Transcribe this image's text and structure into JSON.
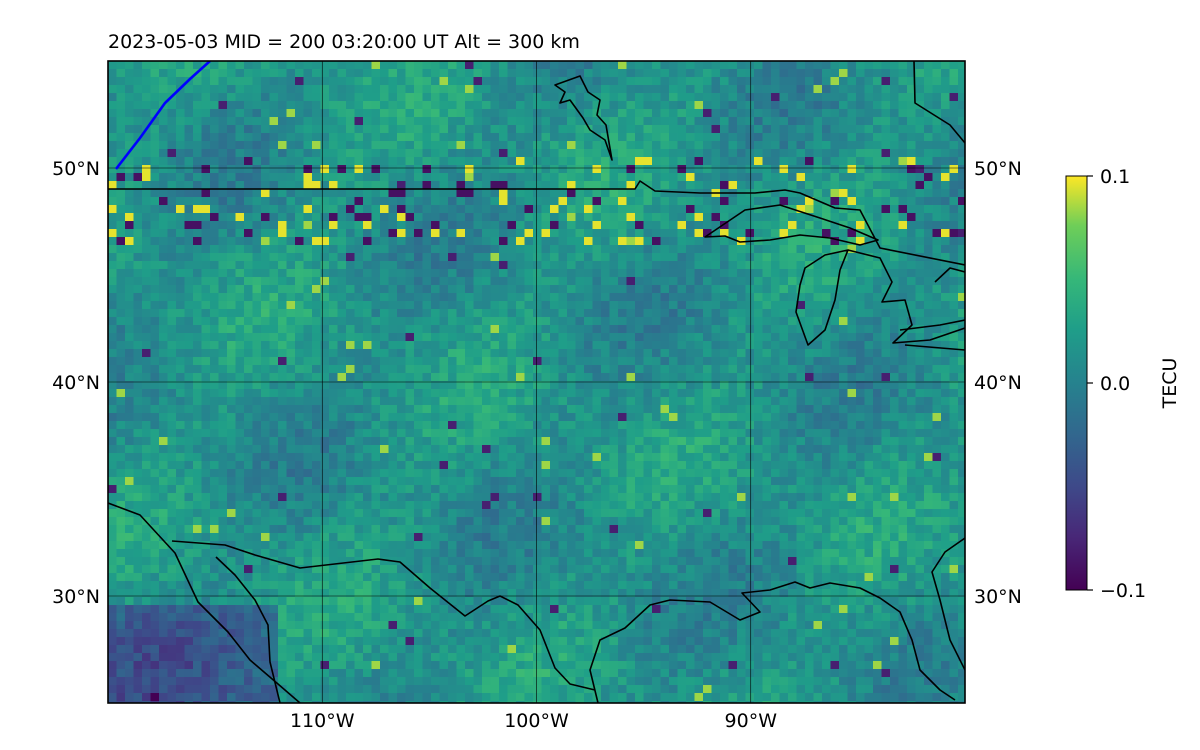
{
  "title": "2023-05-03  MID = 200    03:20:00  UT  Alt = 300 km",
  "map": {
    "projection": "equirectangular",
    "lon_range": [
      -120,
      -80
    ],
    "lat_range": [
      25,
      55
    ],
    "lon_ticks": [
      {
        "value": -110,
        "label": "110°W"
      },
      {
        "value": -100,
        "label": "100°W"
      },
      {
        "value": -90,
        "label": "90°W"
      }
    ],
    "lat_ticks": [
      {
        "value": 50,
        "label": "50°N"
      },
      {
        "value": 40,
        "label": "40°N"
      },
      {
        "value": 30,
        "label": "30°N"
      }
    ],
    "gridlines": true,
    "coastline_color": "#000000",
    "terminator_color": "#0000ff"
  },
  "colorbar": {
    "label": "TECU",
    "colormap": "viridis",
    "range": [
      -0.1,
      0.1
    ],
    "ticks": [
      {
        "value": 0.1,
        "label": "0.1"
      },
      {
        "value": 0.0,
        "label": "0.0"
      },
      {
        "value": -0.1,
        "label": "−0.1"
      }
    ]
  }
}
